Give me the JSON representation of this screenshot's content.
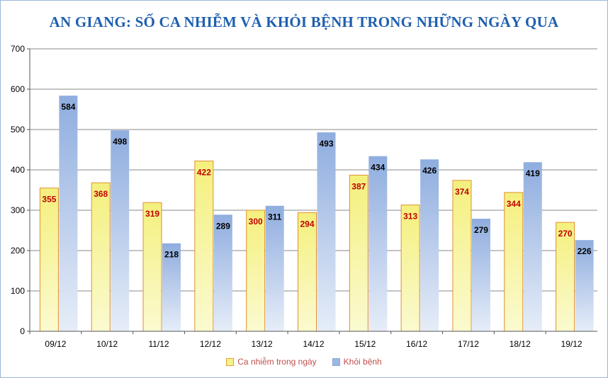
{
  "chart_data": {
    "type": "bar",
    "title": "AN GIANG: SỐ CA NHIỄM VÀ KHỎI BỆNH TRONG NHỮNG NGÀY QUA",
    "xlabel": "",
    "ylabel": "",
    "ylim": [
      0,
      700
    ],
    "yticks": [
      0,
      100,
      200,
      300,
      400,
      500,
      600,
      700
    ],
    "grid": true,
    "legend_position": "bottom",
    "categories": [
      "09/12",
      "10/12",
      "11/12",
      "12/12",
      "13/12",
      "14/12",
      "15/12",
      "16/12",
      "17/12",
      "18/12",
      "19/12"
    ],
    "series": [
      {
        "name": "Ca nhiễm trong ngày",
        "color": "#f5f28a",
        "border": "#e09030",
        "label_color": "#c00000",
        "values": [
          355,
          368,
          319,
          422,
          300,
          294,
          387,
          313,
          374,
          344,
          270
        ]
      },
      {
        "name": "Khỏi bệnh",
        "color": "#9bb7e2",
        "border": "#8fa9d6",
        "label_color": "#000000",
        "values": [
          584,
          498,
          218,
          289,
          311,
          493,
          434,
          426,
          279,
          419,
          226
        ]
      }
    ]
  }
}
